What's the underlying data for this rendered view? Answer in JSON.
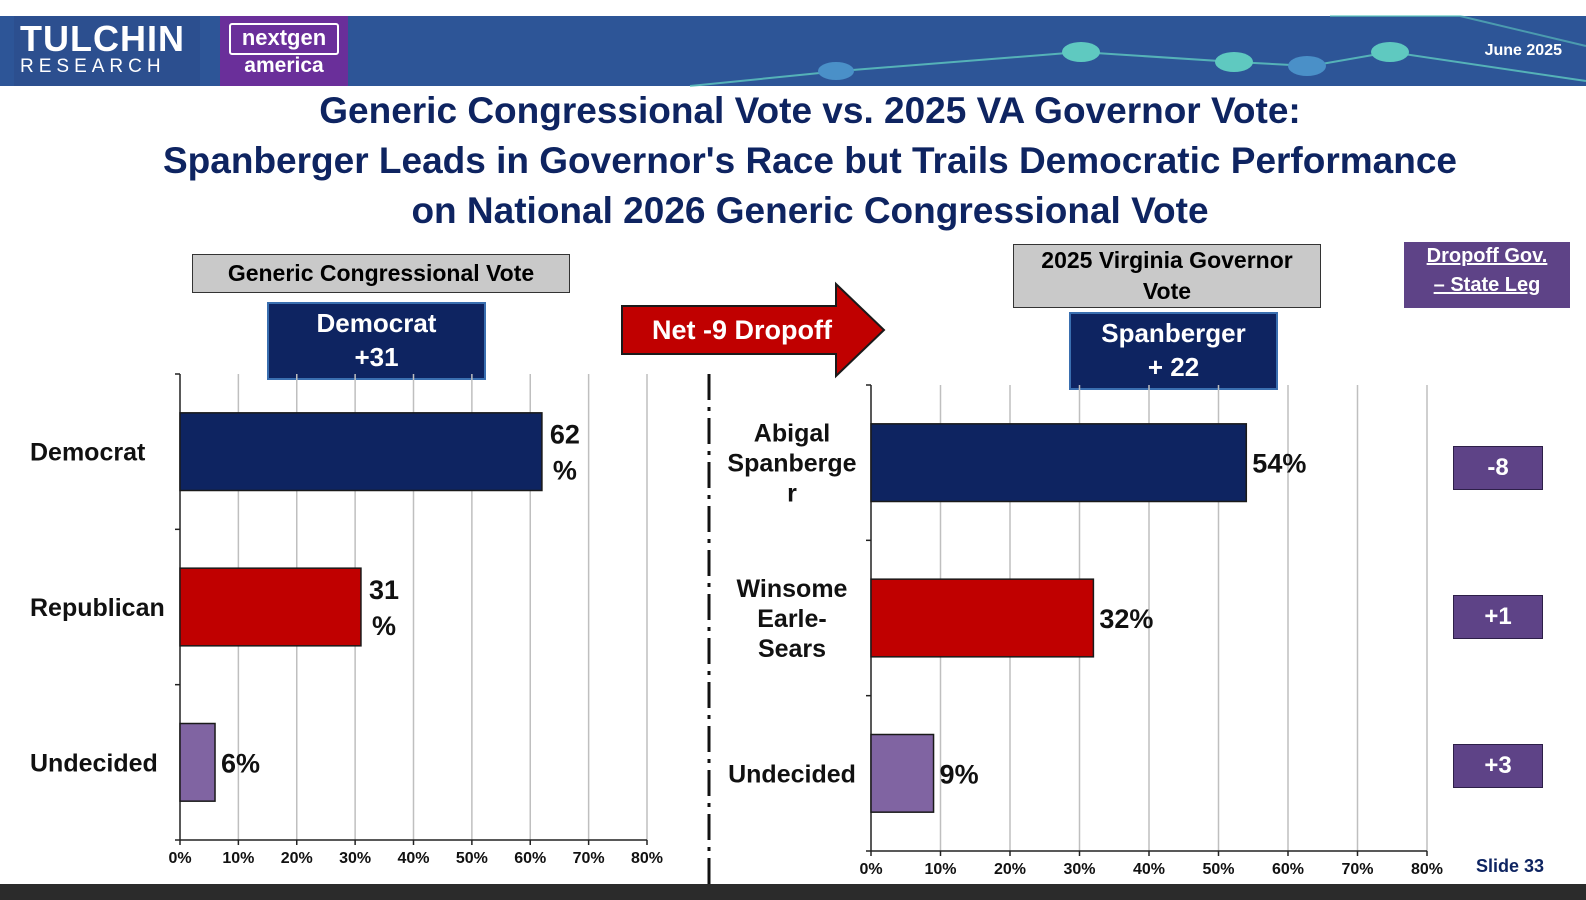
{
  "header": {
    "logo_tulchin_top": "TULCHIN",
    "logo_tulchin_bottom": "RESEARCH",
    "logo_nextgen_top": "nextgen",
    "logo_nextgen_bottom": "america",
    "date": "June 2025"
  },
  "title": {
    "line1": "Generic Congressional Vote vs. 2025 VA Governor Vote:",
    "line2": "Spanberger Leads in Governor's Race but Trails Democratic Performance",
    "line3": "on National 2026 Generic Congressional Vote"
  },
  "left_panel": {
    "label": "Generic Congressional Vote",
    "margin_line1": "Democrat",
    "margin_line2": "+31"
  },
  "arrow_label": "Net -9 Dropoff",
  "right_panel": {
    "label_line1": "2025 Virginia Governor",
    "label_line2": "Vote",
    "margin_line1": "Spanberger",
    "margin_line2": "+ 22"
  },
  "dropoff": {
    "title_line1": "Dropoff Gov.",
    "title_line2": "– State Leg",
    "values": [
      "-8",
      "+1",
      "+3"
    ]
  },
  "slide_label": "Slide 33",
  "colors": {
    "header_bg": "#2d5597",
    "navy": "#0e2461",
    "red": "#c00000",
    "purple": "#8064a2",
    "dropoff_purple": "#5e4387"
  },
  "chart_data": [
    {
      "type": "bar",
      "orientation": "horizontal",
      "title": "Generic Congressional Vote",
      "categories": [
        "Democrat",
        "Republican",
        "Undecided"
      ],
      "values": [
        62,
        31,
        6
      ],
      "value_labels": [
        [
          "62",
          "%"
        ],
        [
          "31",
          "%"
        ],
        [
          "6%"
        ]
      ],
      "bar_colors": [
        "#0e2461",
        "#c00000",
        "#8064a2"
      ],
      "xlim": [
        0,
        80
      ],
      "xticks": [
        "0%",
        "10%",
        "20%",
        "30%",
        "40%",
        "50%",
        "60%",
        "70%",
        "80%"
      ],
      "grid": true
    },
    {
      "type": "bar",
      "orientation": "horizontal",
      "title": "2025 Virginia Governor Vote",
      "categories": [
        [
          "Abigal",
          "Spanberge",
          "r"
        ],
        [
          "Winsome",
          "Earle-",
          "Sears"
        ],
        [
          "Undecided"
        ]
      ],
      "values": [
        54,
        32,
        9
      ],
      "value_labels": [
        [
          "54%"
        ],
        [
          "32%"
        ],
        [
          "9%"
        ]
      ],
      "bar_colors": [
        "#0e2461",
        "#c00000",
        "#8064a2"
      ],
      "xlim": [
        0,
        80
      ],
      "xticks": [
        "0%",
        "10%",
        "20%",
        "30%",
        "40%",
        "50%",
        "60%",
        "70%",
        "80%"
      ],
      "grid": true
    }
  ]
}
